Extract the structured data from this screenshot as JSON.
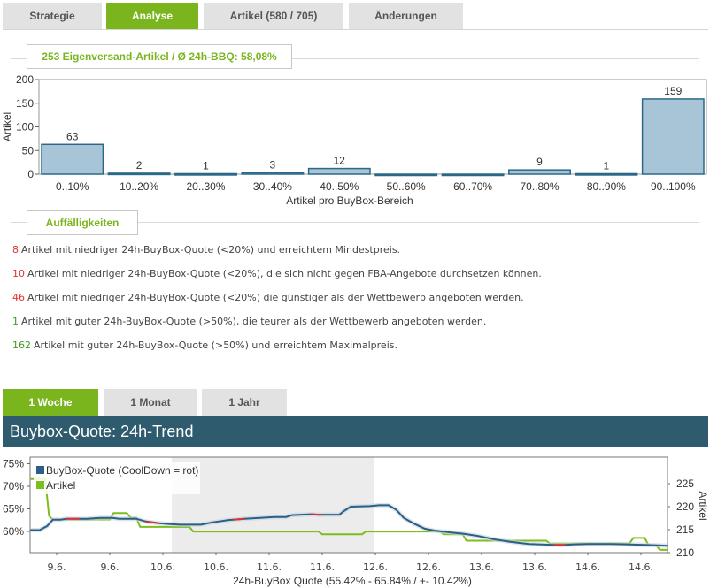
{
  "tabs": [
    {
      "label": "Strategie",
      "active": false
    },
    {
      "label": "Analyse",
      "active": true
    },
    {
      "label": "Artikel (580 / 705)",
      "active": false
    },
    {
      "label": "Änderungen",
      "active": false
    }
  ],
  "summary": "253 Eigenversand-Artikel / Ø 24h-BBQ: 58,08%",
  "chart_data": [
    {
      "type": "bar",
      "categories": [
        "0..10%",
        "10..20%",
        "20..30%",
        "30..40%",
        "40..50%",
        "50..60%",
        "60..70%",
        "70..80%",
        "80..90%",
        "90..100%"
      ],
      "values": [
        63,
        2,
        1,
        3,
        12,
        0,
        0,
        9,
        1,
        159
      ],
      "value_labels": [
        "63",
        "2",
        "1",
        "3",
        "12",
        "",
        "",
        "9",
        "1",
        "159"
      ],
      "ylabel": "Artikel",
      "xlabel": "Artikel pro BuyBox-Bereich",
      "ylim": [
        0,
        200
      ],
      "yticks": [
        0,
        50,
        100,
        150,
        200
      ],
      "colors": {
        "fill": "#a8c5d8",
        "stroke": "#2b6888"
      }
    },
    {
      "type": "line",
      "xlabel": "24h-BuyBox Quote (55.42% - 65.84% / +- 10.42%)",
      "y_left_ticks": [
        "60%",
        "65%",
        "70%",
        "75%"
      ],
      "y_right_ticks": [
        "210",
        "215",
        "220",
        "225"
      ],
      "ylabel_right": "Artikel",
      "x_ticks": [
        "9.6.",
        "9.6.",
        "10.6.",
        "10.6.",
        "11.6.",
        "11.6.",
        "12.6.",
        "12.6.",
        "13.6.",
        "13.6.",
        "14.6.",
        "14.6."
      ],
      "legend": [
        "BuyBox-Quote (CoolDown = rot)",
        "Artikel"
      ],
      "legend_placement": "top-left",
      "series": [
        {
          "name": "BuyBox-Quote (CoolDown = rot)",
          "color": "#2b5f85",
          "cooldown_color": "#e03030",
          "points": [
            [
              0,
              60.3
            ],
            [
              0.5,
              60.3
            ],
            [
              0.9,
              61.2
            ],
            [
              1.2,
              62.6
            ],
            [
              1.6,
              62.6
            ],
            [
              1.9,
              62.8
            ],
            [
              3.0,
              62.8
            ],
            [
              3.7,
              63.0
            ],
            [
              4.3,
              63.0
            ],
            [
              4.7,
              62.8
            ],
            [
              5.6,
              62.8
            ],
            [
              6.1,
              62.2
            ],
            [
              6.8,
              61.8
            ],
            [
              7.4,
              61.6
            ],
            [
              7.9,
              61.5
            ],
            [
              9.0,
              61.5
            ],
            [
              9.6,
              62.0
            ],
            [
              10.4,
              62.5
            ],
            [
              11.3,
              62.8
            ],
            [
              12.1,
              63.0
            ],
            [
              12.9,
              63.2
            ],
            [
              13.5,
              63.2
            ],
            [
              13.8,
              63.6
            ],
            [
              14.8,
              63.8
            ],
            [
              15.2,
              63.7
            ],
            [
              16.3,
              63.7
            ],
            [
              16.5,
              64.4
            ],
            [
              16.9,
              65.5
            ],
            [
              17.9,
              65.6
            ],
            [
              18.4,
              65.8
            ],
            [
              18.9,
              65.8
            ],
            [
              19.3,
              64.8
            ],
            [
              19.7,
              63.0
            ],
            [
              20.2,
              61.8
            ],
            [
              20.8,
              60.6
            ],
            [
              21.3,
              60.2
            ],
            [
              21.9,
              59.9
            ],
            [
              22.8,
              59.5
            ],
            [
              23.6,
              59.0
            ],
            [
              24.4,
              58.3
            ],
            [
              25.3,
              57.7
            ],
            [
              26.3,
              57.2
            ],
            [
              27.6,
              57.0
            ],
            [
              28.2,
              57.0
            ],
            [
              28.6,
              57.1
            ],
            [
              29.4,
              57.2
            ],
            [
              30.6,
              57.2
            ],
            [
              31.6,
              57.1
            ],
            [
              32.4,
              57.0
            ],
            [
              33.1,
              56.9
            ],
            [
              33.6,
              56.8
            ]
          ],
          "cooldown_ranges": [
            [
              1.9,
              2.6
            ],
            [
              6.1,
              6.8
            ],
            [
              10.7,
              11.3
            ],
            [
              14.8,
              15.4
            ],
            [
              27.6,
              28.2
            ]
          ]
        },
        {
          "name": "Artikel",
          "color": "#7dbd1f",
          "points": [
            [
              0,
              226.0
            ],
            [
              0.2,
              226.0
            ],
            [
              0.8,
              226.0
            ],
            [
              1.0,
              218.0
            ],
            [
              1.2,
              217.2
            ],
            [
              4.2,
              217.2
            ],
            [
              4.4,
              218.6
            ],
            [
              5.1,
              218.6
            ],
            [
              5.3,
              217.6
            ],
            [
              5.6,
              217.6
            ],
            [
              5.8,
              215.6
            ],
            [
              8.4,
              215.6
            ],
            [
              8.6,
              214.6
            ],
            [
              15.2,
              214.6
            ],
            [
              15.4,
              214.0
            ],
            [
              17.5,
              214.0
            ],
            [
              17.7,
              214.6
            ],
            [
              21.6,
              214.6
            ],
            [
              21.8,
              214.0
            ],
            [
              22.8,
              214.0
            ],
            [
              23.0,
              212.6
            ],
            [
              27.2,
              212.6
            ],
            [
              27.4,
              212.0
            ],
            [
              31.6,
              212.0
            ],
            [
              31.8,
              213.2
            ],
            [
              32.4,
              213.2
            ],
            [
              32.6,
              211.6
            ],
            [
              33.0,
              211.6
            ],
            [
              33.2,
              210.6
            ],
            [
              33.6,
              210.6
            ]
          ]
        }
      ]
    }
  ],
  "issues_title": "Auffälligkeiten",
  "issues": [
    {
      "count": "8",
      "color": "#e03030",
      "text": "Artikel mit niedriger 24h-BuyBox-Quote (<20%) und erreichtem Mindestpreis."
    },
    {
      "count": "10",
      "color": "#e03030",
      "text": "Artikel mit niedriger 24h-BuyBox-Quote (<20%), die sich nicht gegen FBA-Angebote durchsetzen können."
    },
    {
      "count": "46",
      "color": "#e03030",
      "text": "Artikel mit niedriger 24h-BuyBox-Quote (<20%) die günstiger als der Wettbewerb angeboten werden."
    },
    {
      "count": "1",
      "color": "#3a9a1e",
      "text": "Artikel mit guter 24h-BuyBox-Quote (>50%), die teurer als der Wettbewerb angeboten werden."
    },
    {
      "count": "162",
      "color": "#3a9a1e",
      "text": "Artikel mit guter 24h-BuyBox-Quote (>50%) und erreichtem Maximalpreis."
    }
  ],
  "period_tabs": [
    {
      "label": "1 Woche",
      "active": true
    },
    {
      "label": "1 Monat",
      "active": false
    },
    {
      "label": "1 Jahr",
      "active": false
    }
  ],
  "trend_title": "Buybox-Quote: 24h-Trend"
}
